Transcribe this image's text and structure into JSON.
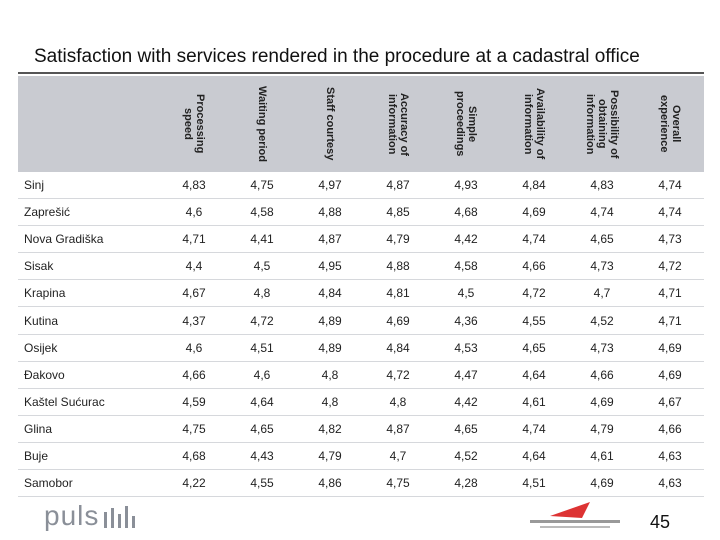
{
  "header": {
    "title": "Satisfaction with services rendered in the procedure at a cadastral office"
  },
  "table": {
    "columns": [
      "Processing speed",
      "Waiting period",
      "Staff courtesy",
      "Accuracy of information",
      "Simple proceedings",
      "Availability of information",
      "Possibility of obtaining information",
      "Overall experience"
    ],
    "rows": [
      [
        "Sinj",
        "4,83",
        "4,75",
        "4,97",
        "4,87",
        "4,93",
        "4,84",
        "4,83",
        "4,74"
      ],
      [
        "Zaprešić",
        "4,6",
        "4,58",
        "4,88",
        "4,85",
        "4,68",
        "4,69",
        "4,74",
        "4,74"
      ],
      [
        "Nova Gradiška",
        "4,71",
        "4,41",
        "4,87",
        "4,79",
        "4,42",
        "4,74",
        "4,65",
        "4,73"
      ],
      [
        "Sisak",
        "4,4",
        "4,5",
        "4,95",
        "4,88",
        "4,58",
        "4,66",
        "4,73",
        "4,72"
      ],
      [
        "Krapina",
        "4,67",
        "4,8",
        "4,84",
        "4,81",
        "4,5",
        "4,72",
        "4,7",
        "4,71"
      ],
      [
        "Kutina",
        "4,37",
        "4,72",
        "4,89",
        "4,69",
        "4,36",
        "4,55",
        "4,52",
        "4,71"
      ],
      [
        "Osijek",
        "4,6",
        "4,51",
        "4,89",
        "4,84",
        "4,53",
        "4,65",
        "4,73",
        "4,69"
      ],
      [
        "Đakovo",
        "4,66",
        "4,6",
        "4,8",
        "4,72",
        "4,47",
        "4,64",
        "4,66",
        "4,69"
      ],
      [
        "Kaštel Sućurac",
        "4,59",
        "4,64",
        "4,8",
        "4,8",
        "4,42",
        "4,61",
        "4,69",
        "4,67"
      ],
      [
        "Glina",
        "4,75",
        "4,65",
        "4,82",
        "4,87",
        "4,65",
        "4,74",
        "4,79",
        "4,66"
      ],
      [
        "Buje",
        "4,68",
        "4,43",
        "4,79",
        "4,7",
        "4,52",
        "4,64",
        "4,61",
        "4,63"
      ],
      [
        "Samobor",
        "4,22",
        "4,55",
        "4,86",
        "4,75",
        "4,28",
        "4,51",
        "4,69",
        "4,63"
      ]
    ]
  },
  "footer": {
    "logo": "puls",
    "page_number": "45"
  }
}
